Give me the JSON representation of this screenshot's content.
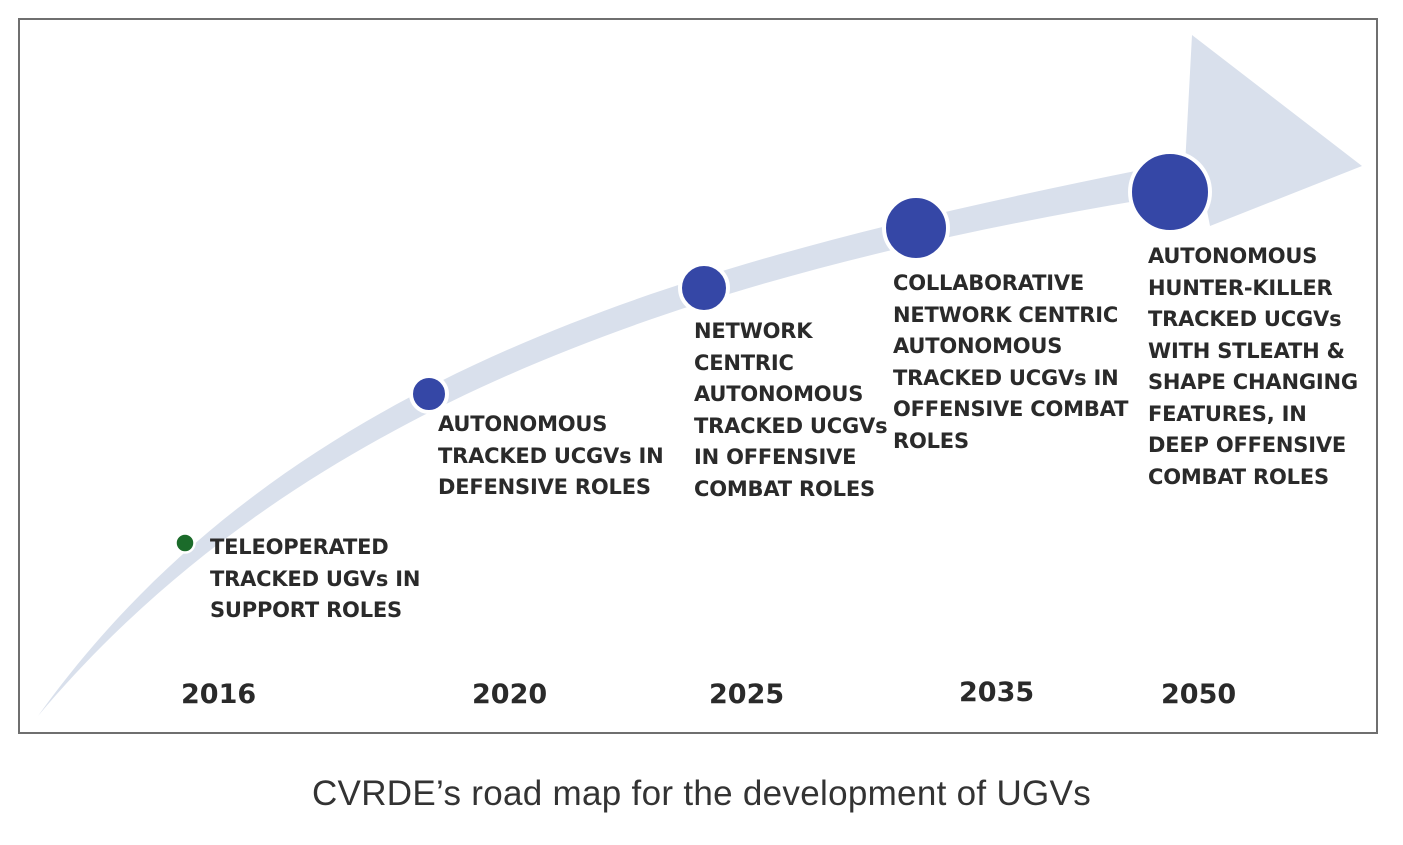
{
  "diagram": {
    "colors": {
      "arrow_fill": "#d9e0ec",
      "milestone_fill": "#3547a6",
      "milestone_ring": "#ffffff",
      "first_milestone_fill": "#1b6b2a",
      "frame_border": "#6f6f6f"
    },
    "milestones": [
      {
        "year": "2016",
        "label": "TELEOPERATED\nTRACKED UGVs IN\nSUPPORT ROLES",
        "marker_color": "first_milestone_fill"
      },
      {
        "year": "2020",
        "label": "AUTONOMOUS\nTRACKED UCGVs IN\nDEFENSIVE ROLES",
        "marker_color": "milestone_fill"
      },
      {
        "year": "2025",
        "label": "NETWORK\nCENTRIC\nAUTONOMOUS\nTRACKED UCGVs\nIN OFFENSIVE\nCOMBAT ROLES",
        "marker_color": "milestone_fill"
      },
      {
        "year": "2035",
        "label": "COLLABORATIVE\nNETWORK CENTRIC\nAUTONOMOUS\nTRACKED UCGVs IN\nOFFENSIVE COMBAT\nROLES",
        "marker_color": "milestone_fill"
      },
      {
        "year": "2050",
        "label": "AUTONOMOUS\nHUNTER-KILLER\nTRACKED UCGVs\nWITH STLEATH &\nSHAPE CHANGING\nFEATURES, IN\nDEEP OFFENSIVE\nCOMBAT ROLES",
        "marker_color": "milestone_fill"
      }
    ]
  },
  "caption": "CVRDE’s road map for the development of UGVs"
}
